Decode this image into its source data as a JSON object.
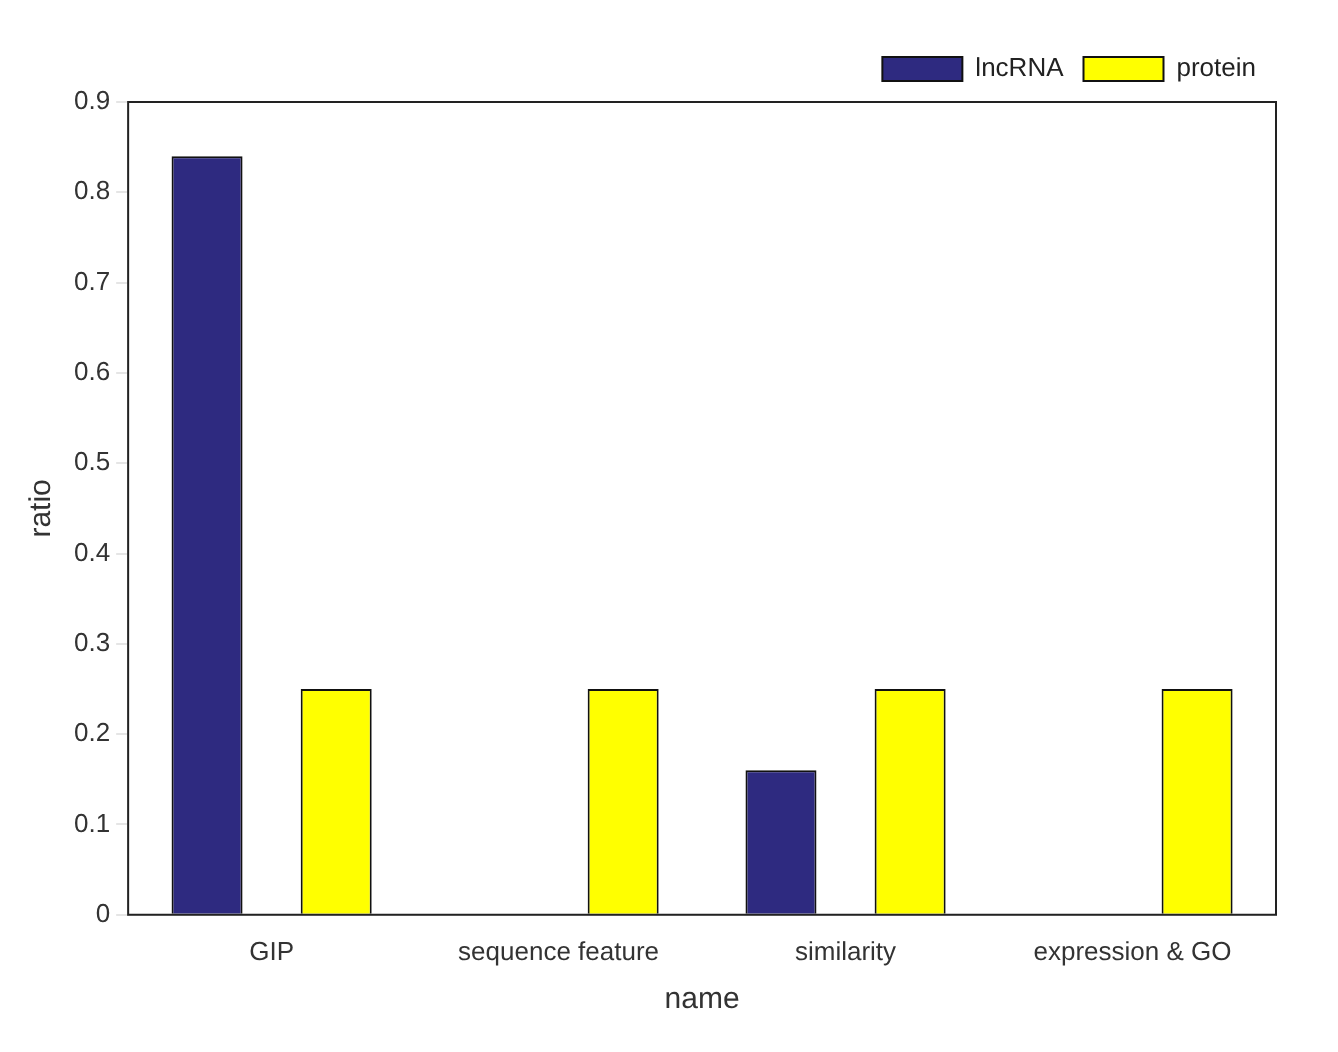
{
  "chart_data": {
    "type": "bar",
    "xlabel": "name",
    "ylabel": "ratio",
    "categories": [
      "GIP",
      "sequence feature",
      "similarity",
      "expression & GO"
    ],
    "series": [
      {
        "name": "lncRNA",
        "color": "#2e2a80",
        "values": [
          0.84,
          0,
          0.16,
          0
        ]
      },
      {
        "name": "protein",
        "color": "#ffff00",
        "values": [
          0.25,
          0.25,
          0.25,
          0.25
        ]
      }
    ],
    "ylim": [
      0,
      0.9
    ],
    "yticks": [
      0,
      0.1,
      0.2,
      0.3,
      0.4,
      0.5,
      0.6,
      0.7,
      0.8,
      0.9
    ],
    "grid": false,
    "legend": "top right"
  }
}
